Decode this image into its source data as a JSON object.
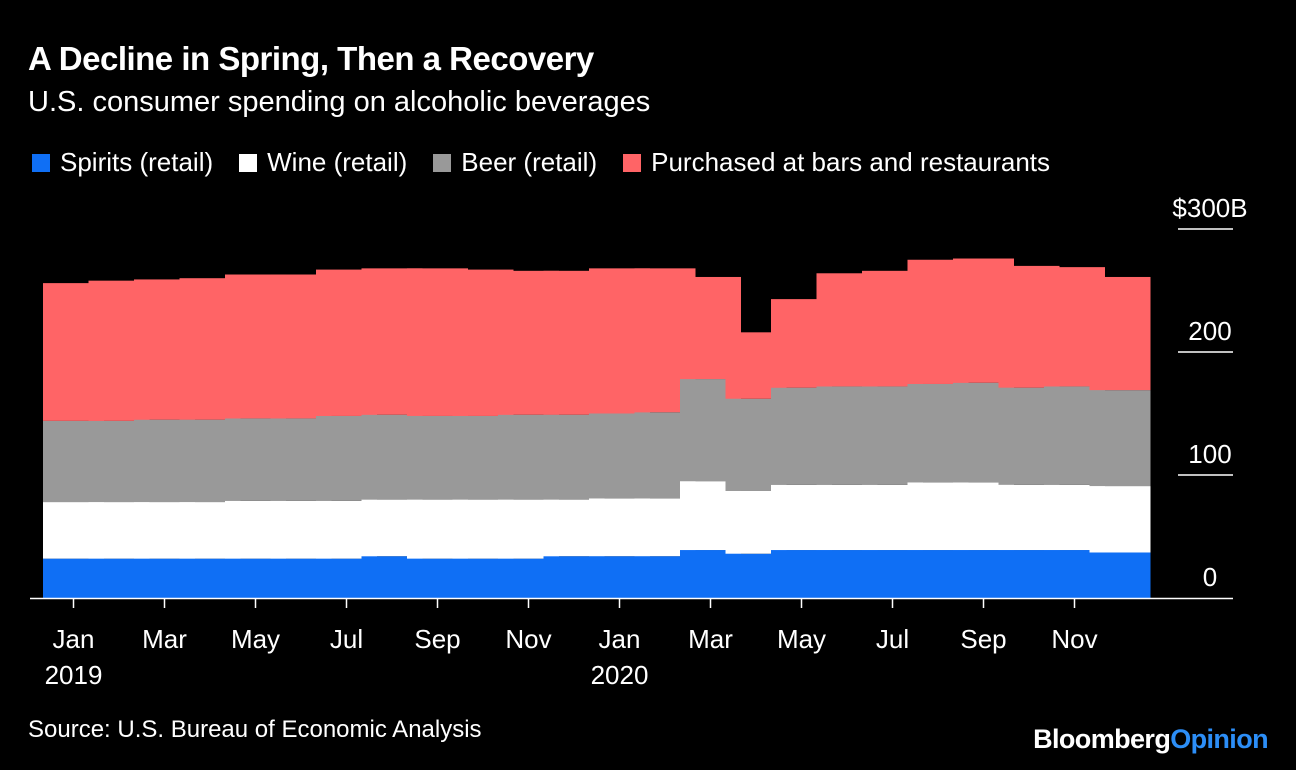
{
  "header": {
    "title": "A Decline in Spring, Then a Recovery",
    "subtitle": "U.S. consumer spending on alcoholic beverages"
  },
  "footer": {
    "source": "Source: U.S. Bureau of Economic Analysis",
    "brand_primary": "Bloomberg",
    "brand_secondary": "Opinion"
  },
  "colors": {
    "background": "#000000",
    "spirits": "#0f6ff5",
    "wine": "#ffffff",
    "beer": "#999999",
    "bars": "#ff6466",
    "brand_accent": "#2c8ef7"
  },
  "chart_data": {
    "type": "bar",
    "stacked": true,
    "title": "A Decline in Spring, Then a Recovery",
    "subtitle": "U.S. consumer spending on alcoholic beverages",
    "unit": "$B",
    "ylim": [
      0,
      300
    ],
    "y_ticks": [
      0,
      100,
      200,
      300
    ],
    "y_tick_labels": [
      "0",
      "100",
      "200",
      "$300B"
    ],
    "grid": false,
    "legend_position": "top",
    "categories": [
      "Jan 2019",
      "Feb 2019",
      "Mar 2019",
      "Apr 2019",
      "May 2019",
      "Jun 2019",
      "Jul 2019",
      "Aug 2019",
      "Sep 2019",
      "Oct 2019",
      "Nov 2019",
      "Dec 2019",
      "Jan 2020",
      "Feb 2020",
      "Mar 2020",
      "Apr 2020",
      "May 2020",
      "Jun 2020",
      "Jul 2020",
      "Aug 2020",
      "Sep 2020",
      "Oct 2020",
      "Nov 2020",
      "Dec 2020"
    ],
    "x_tick_labels": [
      {
        "index": 0,
        "month": "Jan",
        "year": "2019"
      },
      {
        "index": 2,
        "month": "Mar",
        "year": ""
      },
      {
        "index": 4,
        "month": "May",
        "year": ""
      },
      {
        "index": 6,
        "month": "Jul",
        "year": ""
      },
      {
        "index": 8,
        "month": "Sep",
        "year": ""
      },
      {
        "index": 10,
        "month": "Nov",
        "year": ""
      },
      {
        "index": 12,
        "month": "Jan",
        "year": "2020"
      },
      {
        "index": 14,
        "month": "Mar",
        "year": ""
      },
      {
        "index": 16,
        "month": "May",
        "year": ""
      },
      {
        "index": 18,
        "month": "Jul",
        "year": ""
      },
      {
        "index": 20,
        "month": "Sep",
        "year": ""
      },
      {
        "index": 22,
        "month": "Nov",
        "year": ""
      }
    ],
    "series": [
      {
        "name": "Spirits (retail)",
        "color": "#0f6ff5",
        "values": [
          32,
          32,
          32,
          32,
          32,
          32,
          32,
          34,
          32,
          32,
          32,
          34,
          34,
          34,
          39,
          36,
          39,
          39,
          39,
          39,
          39,
          39,
          39,
          37
        ]
      },
      {
        "name": "Wine (retail)",
        "color": "#ffffff",
        "values": [
          46,
          46,
          46,
          46,
          47,
          47,
          47,
          46,
          48,
          48,
          48,
          46,
          47,
          47,
          56,
          51,
          53,
          53,
          53,
          55,
          55,
          53,
          53,
          54
        ]
      },
      {
        "name": "Beer (retail)",
        "color": "#999999",
        "values": [
          66,
          66,
          67,
          67,
          67,
          67,
          69,
          69,
          68,
          68,
          69,
          69,
          69,
          70,
          83,
          75,
          79,
          80,
          80,
          80,
          81,
          79,
          80,
          78
        ]
      },
      {
        "name": "Purchased at bars and restaurants",
        "color": "#ff6466",
        "values": [
          112,
          114,
          114,
          115,
          117,
          117,
          119,
          119,
          120,
          119,
          117,
          117,
          118,
          117,
          83,
          54,
          72,
          92,
          94,
          101,
          101,
          99,
          97,
          92
        ]
      }
    ]
  }
}
